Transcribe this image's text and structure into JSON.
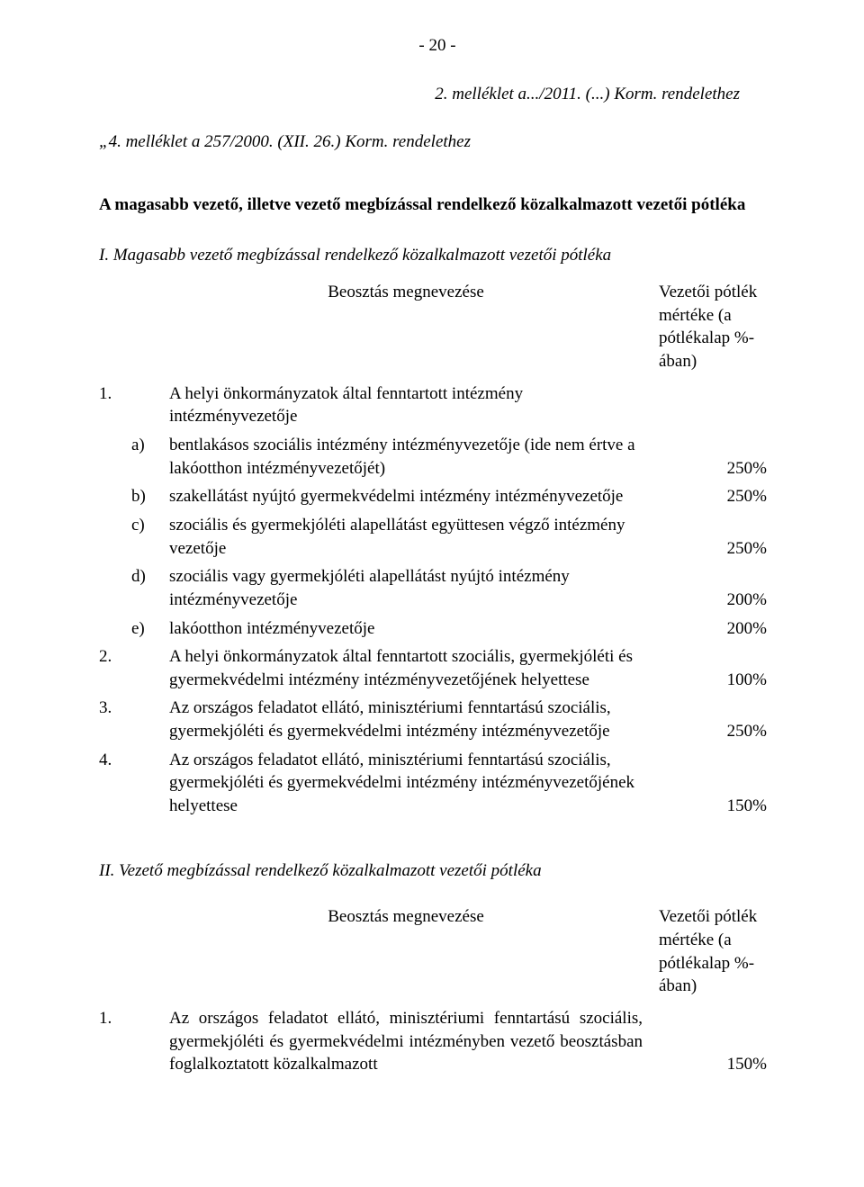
{
  "page_number": "- 20 -",
  "melleklet_header": "2. melléklet a.../2011. (...) Korm. rendelethez",
  "quote_header": "„4. melléklet a 257/2000. (XII. 26.) Korm. rendelethez",
  "bold_heading": "A magasabb vezető, illetve vezető megbízással rendelkező közalkalmazott vezetői pótléka",
  "section_I": "I. Magasabb vezető megbízással rendelkező közalkalmazott vezetői pótléka",
  "col_left_header": "Beosztás megnevezése",
  "col_right_header": "Vezetői pótlék mértéke (a pótlékalap %-ában)",
  "item1_num": "1.",
  "item1_text": "A helyi önkormányzatok által fenntartott intézmény intézményvezetője",
  "item1a_sub": "a)",
  "item1a_text": "bentlakásos szociális intézmény intézményvezetője (ide nem értve a lakóotthon intézményvezetőjét)",
  "item1a_val": "250%",
  "item1b_sub": "b)",
  "item1b_text": "szakellátást nyújtó gyermekvédelmi intézmény intézményvezetője",
  "item1b_val": "250%",
  "item1c_sub": "c)",
  "item1c_text": "szociális és gyermekjóléti alapellátást együttesen végző intézmény vezetője",
  "item1c_val": "250%",
  "item1d_sub": "d)",
  "item1d_text": "szociális vagy gyermekjóléti alapellátást nyújtó intézmény intézményvezetője",
  "item1d_val": "200%",
  "item1e_sub": "e)",
  "item1e_text": "lakóotthon intézményvezetője",
  "item1e_val": "200%",
  "item2_num": "2.",
  "item2_text": "A helyi önkormányzatok által fenntartott szociális, gyermekjóléti és gyermekvédelmi intézmény intézményvezetőjének helyettese",
  "item2_val": "100%",
  "item3_num": "3.",
  "item3_text": "Az országos feladatot ellátó, minisztériumi fenntartású szociális, gyermekjóléti és gyermekvédelmi intézmény intézményvezetője",
  "item3_val": "250%",
  "item4_num": "4.",
  "item4_text": "Az országos feladatot ellátó, minisztériumi fenntartású szociális, gyermekjóléti és gyermekvédelmi intézmény intézményvezetőjének helyettese",
  "item4_val": "150%",
  "section_II": "II. Vezető megbízással rendelkező közalkalmazott vezetői pótléka",
  "sec2_item1_num": "1.",
  "sec2_item1_text": "Az országos feladatot ellátó, minisztériumi fenntartású szociális, gyermekjóléti és gyermekvédelmi intézményben vezető beosztásban foglalkoztatott közalkalmazott",
  "sec2_item1_val": "150%"
}
